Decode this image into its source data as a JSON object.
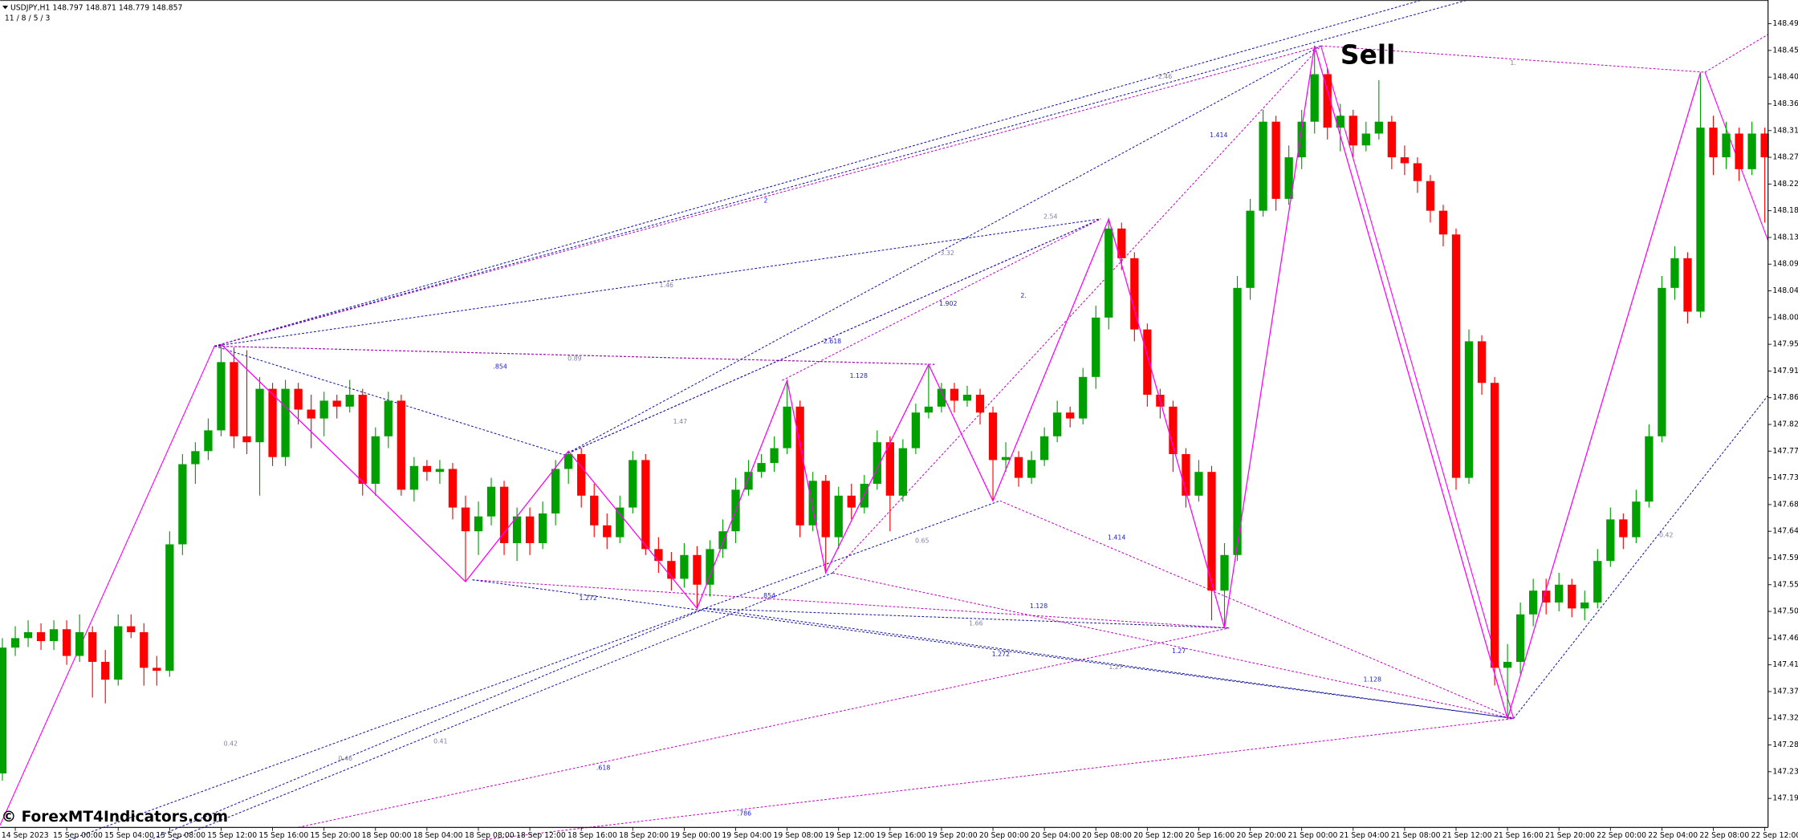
{
  "chart_data": {
    "type": "candlestick",
    "header": "USDJPY,H1  148.797 148.871 148.779 148.857",
    "indicator_params": "11 / 8 / 5 / 3",
    "signal": "Sell",
    "watermark": "© ForexMT4Indicators.com",
    "up_color": "#00a000",
    "down_color": "#ff0000",
    "grid": false,
    "categories": [
      null,
      "14 Sep 2023",
      null,
      null,
      null,
      "15 Sep 00:00",
      null,
      null,
      null,
      "15 Sep 04:00",
      null,
      null,
      null,
      "15 Sep 08:00",
      null,
      null,
      null,
      "15 Sep 12:00",
      null,
      null,
      null,
      "15 Sep 16:00",
      null,
      null,
      null,
      "15 Sep 20:00",
      null,
      null,
      null,
      "18 Sep 00:00",
      null,
      null,
      null,
      "18 Sep 04:00",
      null,
      null,
      null,
      "18 Sep 08:00",
      null,
      null,
      null,
      "18 Sep 12:00",
      null,
      null,
      null,
      "18 Sep 16:00",
      null,
      null,
      null,
      "18 Sep 20:00",
      null,
      null,
      null,
      "19 Sep 00:00",
      null,
      null,
      null,
      "19 Sep 04:00",
      null,
      null,
      null,
      "19 Sep 08:00",
      null,
      null,
      null,
      "19 Sep 12:00",
      null,
      null,
      null,
      "19 Sep 16:00",
      null,
      null,
      null,
      "19 Sep 20:00",
      null,
      null,
      null,
      "20 Sep 00:00",
      null,
      null,
      null,
      "20 Sep 04:00",
      null,
      null,
      null,
      "20 Sep 08:00",
      null,
      null,
      null,
      "20 Sep 12:00",
      null,
      null,
      null,
      "20 Sep 16:00",
      null,
      null,
      null,
      "20 Sep 20:00",
      null,
      null,
      null,
      "21 Sep 00:00",
      null,
      null,
      null,
      "21 Sep 04:00",
      null,
      null,
      null,
      "21 Sep 08:00",
      null,
      null,
      null,
      "21 Sep 12:00",
      null,
      null,
      null,
      "21 Sep 16:00",
      null,
      null,
      null,
      "21 Sep 20:00",
      null,
      null,
      null,
      "22 Sep 00:00",
      null,
      null,
      null,
      "22 Sep 04:00",
      null,
      null,
      null,
      "22 Sep 08:00",
      null,
      null,
      null,
      "22 Sep 12:00"
    ],
    "open": [
      147.232,
      147.444,
      147.46,
      147.47,
      147.455,
      147.475,
      147.43,
      147.47,
      147.42,
      147.39,
      147.48,
      147.47,
      147.41,
      147.405,
      147.618,
      147.753,
      147.775,
      147.81,
      147.925,
      147.8,
      147.79,
      147.88,
      147.765,
      147.88,
      147.845,
      147.83,
      147.86,
      147.85,
      147.87,
      147.72,
      147.8,
      147.86,
      147.71,
      147.75,
      147.74,
      147.745,
      147.68,
      147.64,
      147.665,
      147.715,
      147.62,
      147.665,
      147.62,
      147.67,
      147.745,
      147.77,
      147.7,
      147.65,
      147.63,
      147.68,
      147.76,
      147.61,
      147.59,
      147.56,
      147.6,
      147.55,
      147.61,
      147.64,
      147.71,
      147.74,
      147.755,
      147.78,
      147.85,
      147.65,
      147.725,
      147.63,
      147.7,
      147.68,
      147.72,
      147.79,
      147.7,
      147.78,
      147.84,
      147.85,
      147.88,
      147.86,
      147.87,
      147.84,
      147.76,
      147.765,
      147.73,
      147.76,
      147.8,
      147.84,
      147.83,
      147.9,
      148.0,
      148.15,
      148.1,
      147.98,
      147.87,
      147.85,
      147.77,
      147.7,
      147.74,
      147.54,
      147.6,
      148.05,
      148.18,
      148.33,
      148.2,
      148.27,
      148.33,
      148.41,
      148.32,
      148.34,
      148.29,
      148.31,
      148.33,
      148.27,
      148.26,
      148.23,
      148.18,
      148.14,
      147.73,
      147.96,
      147.89,
      147.41,
      147.42,
      147.5,
      147.54,
      147.52,
      147.55,
      147.51,
      147.52,
      147.59,
      147.66,
      147.63,
      147.69,
      147.8,
      148.05,
      148.1,
      148.01,
      148.32,
      148.27,
      148.31,
      148.25,
      148.31
    ],
    "high": [
      147.46,
      147.48,
      147.49,
      147.485,
      147.49,
      147.49,
      147.5,
      147.48,
      147.44,
      147.5,
      147.5,
      147.485,
      147.43,
      147.64,
      147.77,
      147.79,
      147.83,
      147.955,
      147.95,
      147.945,
      147.9,
      147.89,
      147.895,
      147.89,
      147.87,
      147.875,
      147.87,
      147.895,
      147.88,
      147.815,
      147.875,
      147.87,
      147.765,
      147.76,
      147.76,
      147.755,
      147.7,
      147.69,
      147.73,
      147.725,
      147.68,
      147.68,
      147.69,
      147.76,
      147.775,
      147.78,
      147.72,
      147.67,
      147.7,
      147.775,
      147.77,
      147.63,
      147.605,
      147.62,
      147.615,
      147.625,
      147.66,
      147.73,
      147.76,
      147.77,
      147.8,
      147.894,
      147.86,
      147.74,
      147.735,
      147.715,
      147.72,
      147.735,
      147.81,
      147.8,
      147.795,
      147.855,
      147.921,
      147.89,
      147.89,
      147.885,
      147.88,
      147.85,
      147.79,
      147.775,
      147.775,
      147.815,
      147.86,
      147.85,
      147.915,
      148.02,
      148.166,
      148.16,
      148.11,
      147.99,
      147.88,
      147.86,
      147.78,
      147.76,
      147.75,
      147.62,
      148.07,
      148.2,
      148.35,
      148.34,
      148.29,
      148.35,
      148.458,
      148.42,
      148.36,
      148.35,
      148.33,
      148.4,
      148.34,
      148.29,
      148.27,
      148.24,
      148.19,
      148.15,
      147.98,
      147.97,
      147.9,
      147.45,
      147.52,
      147.56,
      147.56,
      147.57,
      147.56,
      147.54,
      147.61,
      147.68,
      147.67,
      147.71,
      147.82,
      148.07,
      148.12,
      148.11,
      148.413,
      148.34,
      148.33,
      148.32,
      148.33,
      148.32
    ],
    "low": [
      147.22,
      147.43,
      147.445,
      147.44,
      147.44,
      147.415,
      147.42,
      147.36,
      147.35,
      147.38,
      147.46,
      147.38,
      147.38,
      147.395,
      147.6,
      147.72,
      147.76,
      147.8,
      147.78,
      147.77,
      147.7,
      147.75,
      147.75,
      147.82,
      147.78,
      147.8,
      147.83,
      147.84,
      147.7,
      147.7,
      147.78,
      147.7,
      147.69,
      147.725,
      147.72,
      147.66,
      147.555,
      147.6,
      147.65,
      147.6,
      147.59,
      147.6,
      147.61,
      147.65,
      147.72,
      147.68,
      147.63,
      147.61,
      147.62,
      147.67,
      147.6,
      147.57,
      147.54,
      147.545,
      147.51,
      147.53,
      147.595,
      147.62,
      147.7,
      147.73,
      147.74,
      147.77,
      147.63,
      147.64,
      147.57,
      147.61,
      147.66,
      147.67,
      147.71,
      147.64,
      147.69,
      147.77,
      147.83,
      147.84,
      147.84,
      147.85,
      147.82,
      147.691,
      147.74,
      147.715,
      147.72,
      147.75,
      147.79,
      147.815,
      147.82,
      147.88,
      147.98,
      148.08,
      147.96,
      147.85,
      147.83,
      147.74,
      147.68,
      147.69,
      147.49,
      147.477,
      147.59,
      148.03,
      148.17,
      148.18,
      148.19,
      148.25,
      148.31,
      148.3,
      148.28,
      148.27,
      148.28,
      148.3,
      148.25,
      148.24,
      148.21,
      148.16,
      148.12,
      147.71,
      147.72,
      147.87,
      147.38,
      147.324,
      147.4,
      147.48,
      147.5,
      147.505,
      147.495,
      147.49,
      147.51,
      147.58,
      147.61,
      147.62,
      147.68,
      147.79,
      148.03,
      147.99,
      148.0,
      148.24,
      148.25,
      148.23,
      148.24,
      148.16
    ],
    "close": [
      147.444,
      147.46,
      147.47,
      147.455,
      147.475,
      147.43,
      147.47,
      147.42,
      147.39,
      147.48,
      147.47,
      147.41,
      147.405,
      147.618,
      147.753,
      147.775,
      147.81,
      147.925,
      147.8,
      147.79,
      147.88,
      147.765,
      147.88,
      147.845,
      147.83,
      147.86,
      147.85,
      147.87,
      147.72,
      147.8,
      147.86,
      147.71,
      147.75,
      147.74,
      147.745,
      147.68,
      147.64,
      147.665,
      147.715,
      147.62,
      147.665,
      147.62,
      147.67,
      147.745,
      147.77,
      147.7,
      147.65,
      147.63,
      147.68,
      147.76,
      147.61,
      147.59,
      147.56,
      147.6,
      147.55,
      147.61,
      147.64,
      147.71,
      147.74,
      147.755,
      147.78,
      147.85,
      147.65,
      147.725,
      147.63,
      147.7,
      147.68,
      147.72,
      147.79,
      147.7,
      147.78,
      147.84,
      147.85,
      147.88,
      147.86,
      147.87,
      147.84,
      147.76,
      147.765,
      147.73,
      147.76,
      147.8,
      147.84,
      147.83,
      147.9,
      148.0,
      148.15,
      148.1,
      147.98,
      147.87,
      147.85,
      147.77,
      147.7,
      147.74,
      147.54,
      147.6,
      148.05,
      148.18,
      148.33,
      148.2,
      148.27,
      148.33,
      148.41,
      148.32,
      148.34,
      148.29,
      148.31,
      148.33,
      148.27,
      148.26,
      148.23,
      148.18,
      148.14,
      147.73,
      147.96,
      147.89,
      147.41,
      147.42,
      147.5,
      147.54,
      147.52,
      147.55,
      147.51,
      147.52,
      147.59,
      147.66,
      147.63,
      147.69,
      147.8,
      148.05,
      148.1,
      148.01,
      148.32,
      148.27,
      148.31,
      148.25,
      148.31,
      148.27
    ],
    "zigzag": {
      "color": "#ff00ff",
      "x": [
        17,
        36,
        44,
        54,
        61,
        64,
        72,
        77,
        86,
        95,
        102,
        117,
        132
      ],
      "values": [
        147.955,
        147.555,
        147.775,
        147.51,
        147.894,
        147.57,
        147.921,
        147.691,
        148.166,
        147.477,
        148.458,
        147.324,
        148.413
      ]
    },
    "ratio_labels": [
      "2.46",
      "2",
      "1.46",
      "0.89",
      ".854",
      "1.128",
      "1.47",
      "2.618",
      "3.32",
      "2.54",
      "1.902",
      "2.",
      "1.414",
      "1.",
      "0.65",
      "1.272",
      ".854",
      "1.66",
      "1.128",
      "1.414",
      "1.272",
      "1.27",
      "1.27",
      "1.128",
      "0.42",
      "0.42",
      "0.46",
      "0.41",
      ".618",
      ".786"
    ],
    "ylim": [
      147.145,
      148.535
    ],
    "yticks": [
      148.495,
      {
        "value": 148.45,
        "label": "148.450"
      },
      148.405,
      {
        "value": 148.36,
        "label": "148.360"
      },
      148.315,
      {
        "value": 148.27,
        "label": "148.270"
      },
      148.225,
      {
        "value": 148.18,
        "label": "148.180"
      },
      148.135,
      {
        "value": 148.09,
        "label": "148.090"
      },
      148.045,
      {
        "value": 148,
        "label": "148.000"
      },
      147.955,
      {
        "value": 147.91,
        "label": "147.910"
      },
      147.865,
      {
        "value": 147.82,
        "label": "147.820"
      },
      147.775,
      {
        "value": 147.73,
        "label": "147.730"
      },
      147.685,
      {
        "value": 147.64,
        "label": "147.640"
      },
      147.595,
      {
        "value": 147.55,
        "label": "147.550"
      },
      147.505,
      {
        "value": 147.46,
        "label": "147.460"
      },
      147.415,
      {
        "value": 147.37,
        "label": "147.370"
      },
      147.325,
      {
        "value": 147.28,
        "label": "147.280"
      },
      147.235,
      {
        "value": 147.19,
        "label": "147.190"
      }
    ]
  }
}
